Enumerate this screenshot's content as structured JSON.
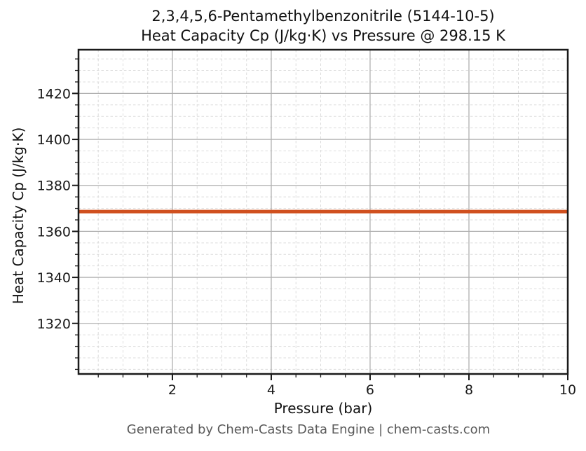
{
  "chart_data": {
    "type": "line",
    "title_lines": [
      "2,3,4,5,6-Pentamethylbenzonitrile (5144-10-5)",
      "Heat Capacity Cp (J/kg·K) vs Pressure @ 298.15 K"
    ],
    "xlabel": "Pressure (bar)",
    "ylabel": "Heat Capacity Cp (J/kg·K)",
    "xlim": [
      0.1,
      10
    ],
    "ylim": [
      1298,
      1439
    ],
    "xticks": [
      2,
      4,
      6,
      8,
      10
    ],
    "yticks": [
      1320,
      1340,
      1360,
      1380,
      1400,
      1420
    ],
    "x_minor_step": 0.5,
    "y_minor_step": 5,
    "grid": {
      "major": true,
      "minor": true,
      "major_color": "#b0b0b0",
      "minor_color": "#dcdcdc"
    },
    "axis_color": "#1a1a1a",
    "tick_label_color": "#1a1a1a",
    "legend": "none",
    "series": [
      {
        "name": "Heat Capacity Cp",
        "color": "#d0501f",
        "x": [
          0.1,
          10.0
        ],
        "y": [
          1368.6,
          1368.6
        ]
      }
    ]
  },
  "footer": {
    "text": "Generated by Chem-Casts Data Engine | chem-casts.com",
    "color": "#595959"
  }
}
